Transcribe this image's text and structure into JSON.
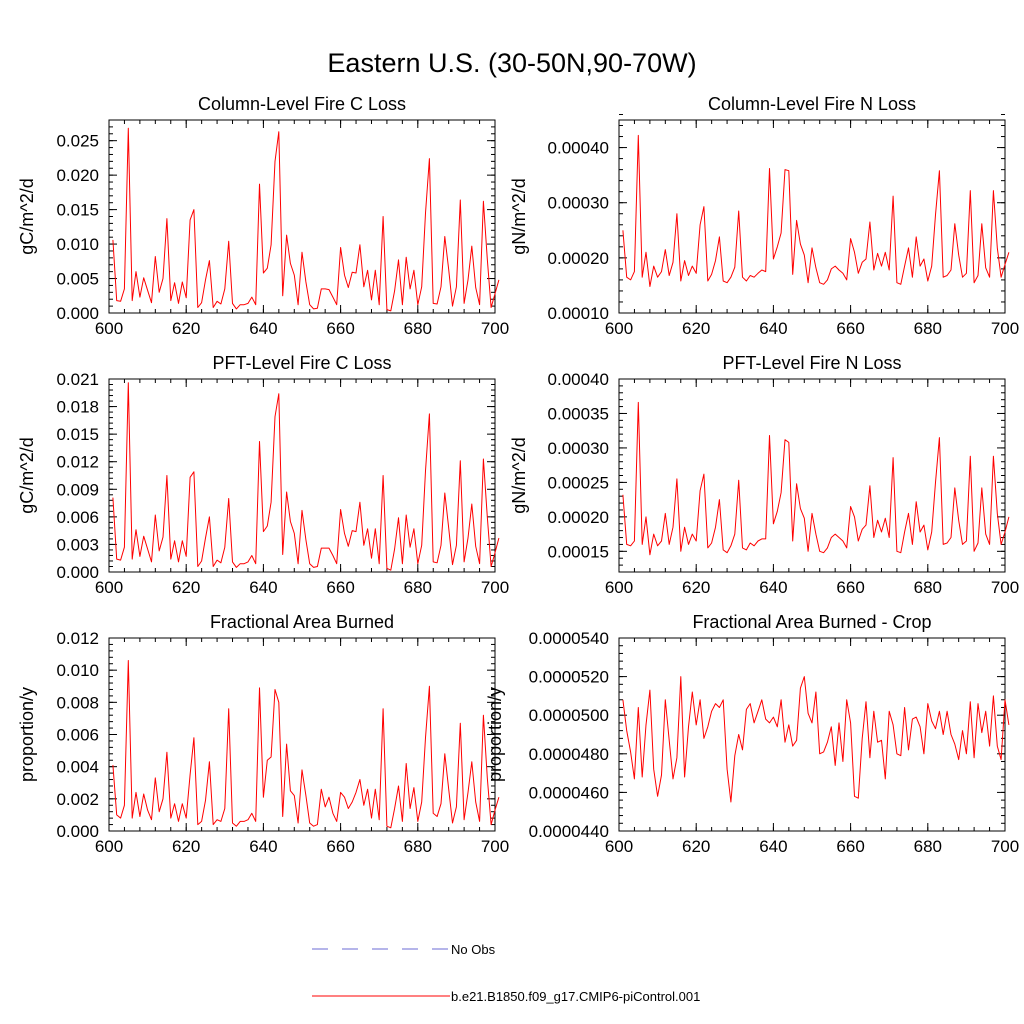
{
  "figure_title": "Eastern U.S. (30-50N,90-70W)",
  "colors": {
    "model_line": "#ff0000",
    "obs_line": "#6b6bd6",
    "axis": "#000000"
  },
  "legend": {
    "obs_label": "No Obs",
    "model_label": "b.e21.B1850.f09_g17.CMIP6-piControl.001"
  },
  "chart_data": [
    {
      "type": "line",
      "title": "Column-Level Fire C Loss",
      "xlabel": "",
      "ylabel": "gC/m^2/d",
      "xlim": [
        600,
        700
      ],
      "ylim": [
        0,
        0.028
      ],
      "xticks": [
        600,
        620,
        640,
        660,
        680,
        700
      ],
      "xtick_labels": [
        "600",
        "620",
        "640",
        "660",
        "680",
        "700"
      ],
      "yticks": [
        0,
        0.005,
        0.01,
        0.015,
        0.02,
        0.025
      ],
      "ytick_labels": [
        "0.000",
        "0.005",
        "0.010",
        "0.015",
        "0.020",
        "0.025"
      ],
      "x_start": 601,
      "series": [
        {
          "name": "b.e21.B1850.f09_g17.CMIP6-piControl.001",
          "values": [
            0.0106,
            0.0018,
            0.0017,
            0.0035,
            0.0268,
            0.0018,
            0.006,
            0.0023,
            0.0051,
            0.0033,
            0.0015,
            0.0082,
            0.003,
            0.005,
            0.0137,
            0.0018,
            0.0044,
            0.0014,
            0.0045,
            0.0022,
            0.0135,
            0.015,
            0.0008,
            0.0015,
            0.0048,
            0.0076,
            0.0008,
            0.0017,
            0.0013,
            0.0035,
            0.0104,
            0.0014,
            0.0006,
            0.0012,
            0.0012,
            0.0014,
            0.0023,
            0.0012,
            0.0187,
            0.0058,
            0.0065,
            0.0099,
            0.022,
            0.0263,
            0.0025,
            0.0113,
            0.0072,
            0.0055,
            0.0012,
            0.0088,
            0.0045,
            0.0012,
            0.0006,
            0.0007,
            0.0035,
            0.0035,
            0.0034,
            0.0023,
            0.0012,
            0.0095,
            0.0055,
            0.0037,
            0.0059,
            0.0058,
            0.0099,
            0.0038,
            0.0062,
            0.0019,
            0.0062,
            0.0012,
            0.014,
            0.0005,
            0.0003,
            0.0032,
            0.0077,
            0.0012,
            0.0081,
            0.0035,
            0.0062,
            0.0012,
            0.0038,
            0.0145,
            0.0224,
            0.0014,
            0.0013,
            0.0038,
            0.0111,
            0.0063,
            0.001,
            0.0038,
            0.0164,
            0.0014,
            0.0048,
            0.0097,
            0.0037,
            0.0012,
            0.0162,
            0.0078,
            0.0008,
            0.0028,
            0.0048
          ]
        }
      ]
    },
    {
      "type": "line",
      "title": "Column-Level Fire N Loss",
      "xlabel": "",
      "ylabel": "gN/m^2/d",
      "xlim": [
        600,
        700
      ],
      "ylim": [
        0.0001,
        0.00045
      ],
      "xticks": [
        600,
        620,
        640,
        660,
        680,
        700
      ],
      "xtick_labels": [
        "600",
        "620",
        "640",
        "660",
        "680",
        "700"
      ],
      "yticks": [
        0.0001,
        0.0002,
        0.0003,
        0.0004
      ],
      "ytick_labels": [
        "0.00010",
        "0.00020",
        "0.00030",
        "0.00040"
      ],
      "x_start": 601,
      "series": [
        {
          "name": "b.e21.B1850.f09_g17.CMIP6-piControl.001",
          "values": [
            0.00025,
            0.000165,
            0.00016,
            0.000175,
            0.000422,
            0.000165,
            0.00021,
            0.000148,
            0.000185,
            0.000165,
            0.000175,
            0.000215,
            0.000168,
            0.000192,
            0.00028,
            0.000158,
            0.000195,
            0.000168,
            0.000185,
            0.000172,
            0.00026,
            0.000293,
            0.000158,
            0.00017,
            0.000195,
            0.000238,
            0.000158,
            0.000155,
            0.000165,
            0.000183,
            0.000285,
            0.000165,
            0.000158,
            0.000168,
            0.000165,
            0.000172,
            0.000178,
            0.000175,
            0.000362,
            0.000198,
            0.00022,
            0.000245,
            0.00036,
            0.000358,
            0.00017,
            0.000268,
            0.000225,
            0.000205,
            0.000155,
            0.000218,
            0.000182,
            0.000155,
            0.000152,
            0.00016,
            0.00018,
            0.000185,
            0.000178,
            0.000172,
            0.00016,
            0.000235,
            0.00021,
            0.000172,
            0.000192,
            0.000198,
            0.000265,
            0.000178,
            0.000208,
            0.000185,
            0.00021,
            0.000178,
            0.000312,
            0.000155,
            0.000152,
            0.000185,
            0.000218,
            0.000165,
            0.000238,
            0.000185,
            0.000198,
            0.000158,
            0.000185,
            0.000278,
            0.000358,
            0.000165,
            0.000168,
            0.000178,
            0.000262,
            0.000205,
            0.000165,
            0.000172,
            0.000322,
            0.000155,
            0.000168,
            0.000262,
            0.000182,
            0.000165,
            0.000322,
            0.000218,
            0.000165,
            0.000188,
            0.00021
          ]
        }
      ]
    },
    {
      "type": "line",
      "title": "PFT-Level Fire C Loss",
      "xlabel": "",
      "ylabel": "gC/m^2/d",
      "xlim": [
        600,
        700
      ],
      "ylim": [
        0,
        0.021
      ],
      "xticks": [
        600,
        620,
        640,
        660,
        680,
        700
      ],
      "xtick_labels": [
        "600",
        "620",
        "640",
        "660",
        "680",
        "700"
      ],
      "yticks": [
        0,
        0.003,
        0.006,
        0.009,
        0.012,
        0.015,
        0.018,
        0.021
      ],
      "ytick_labels": [
        "0.000",
        "0.003",
        "0.006",
        "0.009",
        "0.012",
        "0.015",
        "0.018",
        "0.021"
      ],
      "x_start": 601,
      "series": [
        {
          "name": "b.e21.B1850.f09_g17.CMIP6-piControl.001",
          "values": [
            0.0081,
            0.0014,
            0.0013,
            0.0027,
            0.0206,
            0.0014,
            0.0046,
            0.0017,
            0.0039,
            0.0025,
            0.0011,
            0.0062,
            0.0023,
            0.0038,
            0.0105,
            0.0014,
            0.0034,
            0.0011,
            0.0034,
            0.0017,
            0.0103,
            0.0109,
            0.0006,
            0.0012,
            0.0037,
            0.006,
            0.0006,
            0.0013,
            0.001,
            0.0027,
            0.008,
            0.0011,
            0.0005,
            0.0009,
            0.0009,
            0.0011,
            0.0018,
            0.0009,
            0.0142,
            0.0044,
            0.005,
            0.0076,
            0.0169,
            0.0194,
            0.0019,
            0.0087,
            0.0055,
            0.0042,
            0.0009,
            0.0067,
            0.0035,
            0.0009,
            0.0005,
            0.0006,
            0.0026,
            0.0026,
            0.0026,
            0.0018,
            0.0009,
            0.0068,
            0.0042,
            0.0028,
            0.0045,
            0.0044,
            0.0076,
            0.0029,
            0.0047,
            0.0015,
            0.0047,
            0.0009,
            0.0105,
            0.0004,
            0.0002,
            0.0025,
            0.0059,
            0.0009,
            0.0062,
            0.0027,
            0.0047,
            0.0009,
            0.0029,
            0.011,
            0.0172,
            0.0011,
            0.001,
            0.0029,
            0.0086,
            0.0048,
            0.0008,
            0.0029,
            0.0121,
            0.0011,
            0.0037,
            0.0074,
            0.0028,
            0.0009,
            0.0123,
            0.006,
            0.0006,
            0.0021,
            0.0037
          ]
        }
      ]
    },
    {
      "type": "line",
      "title": "PFT-Level Fire N Loss",
      "xlabel": "",
      "ylabel": "gN/m^2/d",
      "xlim": [
        600,
        700
      ],
      "ylim": [
        0.00012,
        0.0004
      ],
      "xticks": [
        600,
        620,
        640,
        660,
        680,
        700
      ],
      "xtick_labels": [
        "600",
        "620",
        "640",
        "660",
        "680",
        "700"
      ],
      "yticks": [
        0.00015,
        0.0002,
        0.00025,
        0.0003,
        0.00035,
        0.0004
      ],
      "ytick_labels": [
        "0.00015",
        "0.00020",
        "0.00025",
        "0.00030",
        "0.00035",
        "0.00040"
      ],
      "x_start": 601,
      "series": [
        {
          "name": "b.e21.B1850.f09_g17.CMIP6-piControl.001",
          "values": [
            0.000232,
            0.00016,
            0.000158,
            0.000165,
            0.000366,
            0.00016,
            0.0002,
            0.000145,
            0.000175,
            0.000158,
            0.000165,
            0.000205,
            0.00016,
            0.000185,
            0.000255,
            0.00015,
            0.000185,
            0.00016,
            0.000175,
            0.000165,
            0.000238,
            0.000262,
            0.000155,
            0.000162,
            0.000185,
            0.000225,
            0.000152,
            0.000148,
            0.000158,
            0.000175,
            0.000253,
            0.000155,
            0.000152,
            0.000162,
            0.000158,
            0.000165,
            0.000168,
            0.000168,
            0.000318,
            0.00019,
            0.000208,
            0.000235,
            0.000312,
            0.000308,
            0.000165,
            0.000248,
            0.000212,
            0.000198,
            0.00015,
            0.000205,
            0.000175,
            0.00015,
            0.000148,
            0.000155,
            0.00017,
            0.000175,
            0.00017,
            0.000165,
            0.000155,
            0.000215,
            0.0002,
            0.000165,
            0.000182,
            0.000188,
            0.000245,
            0.00017,
            0.000195,
            0.000178,
            0.000198,
            0.00017,
            0.000286,
            0.00015,
            0.000148,
            0.000178,
            0.000205,
            0.00016,
            0.000222,
            0.000178,
            0.000188,
            0.000152,
            0.000178,
            0.00025,
            0.000315,
            0.00016,
            0.000162,
            0.00017,
            0.000242,
            0.000195,
            0.00016,
            0.000165,
            0.000288,
            0.00015,
            0.000162,
            0.000242,
            0.000175,
            0.00016,
            0.000288,
            0.000205,
            0.00016,
            0.000178,
            0.0002
          ]
        }
      ]
    },
    {
      "type": "line",
      "title": "Fractional Area Burned",
      "xlabel": "",
      "ylabel": "proportion/y",
      "xlim": [
        600,
        700
      ],
      "ylim": [
        0,
        0.012
      ],
      "xticks": [
        600,
        620,
        640,
        660,
        680,
        700
      ],
      "xtick_labels": [
        "600",
        "620",
        "640",
        "660",
        "680",
        "700"
      ],
      "yticks": [
        0,
        0.002,
        0.004,
        0.006,
        0.008,
        0.01,
        0.012
      ],
      "ytick_labels": [
        "0.000",
        "0.002",
        "0.004",
        "0.006",
        "0.008",
        "0.010",
        "0.012"
      ],
      "x_start": 601,
      "series": [
        {
          "name": "b.e21.B1850.f09_g17.CMIP6-piControl.001",
          "values": [
            0.0041,
            0.001,
            0.0008,
            0.0016,
            0.0106,
            0.0008,
            0.0024,
            0.0009,
            0.0023,
            0.0013,
            0.0007,
            0.0033,
            0.0012,
            0.002,
            0.0049,
            0.0008,
            0.0017,
            0.0006,
            0.0017,
            0.0008,
            0.0035,
            0.0058,
            0.0004,
            0.0006,
            0.0019,
            0.0043,
            0.0004,
            0.0007,
            0.0006,
            0.0014,
            0.0076,
            0.0005,
            0.0003,
            0.0006,
            0.0006,
            0.0007,
            0.0011,
            0.0006,
            0.0089,
            0.0021,
            0.0044,
            0.0046,
            0.0088,
            0.008,
            0.0009,
            0.0054,
            0.0025,
            0.0022,
            0.0005,
            0.0038,
            0.0022,
            0.0005,
            0.0003,
            0.0004,
            0.0026,
            0.0015,
            0.0021,
            0.0011,
            0.0006,
            0.0024,
            0.0021,
            0.0014,
            0.0018,
            0.0024,
            0.0032,
            0.0016,
            0.0026,
            0.0008,
            0.0026,
            0.0007,
            0.0076,
            0.0003,
            0.0002,
            0.0014,
            0.0028,
            0.0006,
            0.0042,
            0.0014,
            0.0027,
            0.0006,
            0.0018,
            0.0058,
            0.009,
            0.0011,
            0.0009,
            0.0017,
            0.0048,
            0.0026,
            0.0005,
            0.0015,
            0.0067,
            0.0007,
            0.0024,
            0.0043,
            0.0018,
            0.0006,
            0.0072,
            0.0033,
            0.0004,
            0.0013,
            0.0021
          ]
        }
      ]
    },
    {
      "type": "line",
      "title": "Fractional Area Burned - Crop",
      "xlabel": "",
      "ylabel": "proportion/y",
      "xlim": [
        600,
        700
      ],
      "ylim": [
        4.4e-05,
        5.4e-05
      ],
      "xticks": [
        600,
        620,
        640,
        660,
        680,
        700
      ],
      "xtick_labels": [
        "600",
        "620",
        "640",
        "660",
        "680",
        "700"
      ],
      "yticks": [
        4.4e-05,
        4.6e-05,
        4.8e-05,
        5e-05,
        5.2e-05,
        5.4e-05
      ],
      "ytick_labels": [
        "0.0000440",
        "0.0000460",
        "0.0000480",
        "0.0000500",
        "0.0000520",
        "0.0000540"
      ],
      "x_start": 601,
      "series": [
        {
          "name": "b.e21.B1850.f09_g17.CMIP6-piControl.001",
          "values": [
            5.08e-05,
            4.92e-05,
            4.81e-05,
            4.67e-05,
            5.04e-05,
            4.68e-05,
            4.95e-05,
            5.13e-05,
            4.72e-05,
            4.58e-05,
            4.69e-05,
            5.08e-05,
            4.87e-05,
            4.67e-05,
            4.78e-05,
            5.2e-05,
            4.68e-05,
            4.94e-05,
            5.12e-05,
            4.95e-05,
            5.08e-05,
            4.88e-05,
            4.94e-05,
            5.02e-05,
            5.06e-05,
            5.04e-05,
            5.08e-05,
            4.72e-05,
            4.55e-05,
            4.79e-05,
            4.9e-05,
            4.82e-05,
            5.03e-05,
            5.06e-05,
            4.96e-05,
            5.02e-05,
            5.08e-05,
            4.98e-05,
            4.96e-05,
            4.99e-05,
            4.94e-05,
            5.08e-05,
            4.86e-05,
            4.95e-05,
            4.84e-05,
            4.87e-05,
            5.14e-05,
            5.2e-05,
            5.01e-05,
            4.96e-05,
            5.12e-05,
            4.8e-05,
            4.81e-05,
            4.86e-05,
            4.94e-05,
            4.74e-05,
            4.96e-05,
            4.76e-05,
            5.08e-05,
            4.96e-05,
            4.58e-05,
            4.57e-05,
            4.88e-05,
            5.07e-05,
            4.78e-05,
            5.02e-05,
            4.86e-05,
            4.87e-05,
            4.67e-05,
            5.02e-05,
            4.95e-05,
            4.8e-05,
            4.79e-05,
            5.04e-05,
            4.82e-05,
            4.98e-05,
            4.99e-05,
            4.94e-05,
            4.8e-05,
            5.06e-05,
            4.97e-05,
            4.93e-05,
            5.02e-05,
            4.9e-05,
            5.02e-05,
            4.9e-05,
            4.85e-05,
            4.77e-05,
            4.92e-05,
            4.8e-05,
            5.07e-05,
            4.78e-05,
            5.06e-05,
            4.91e-05,
            5.02e-05,
            4.84e-05,
            5.1e-05,
            4.84e-05,
            4.77e-05,
            5.08e-05,
            4.95e-05
          ]
        }
      ]
    }
  ]
}
